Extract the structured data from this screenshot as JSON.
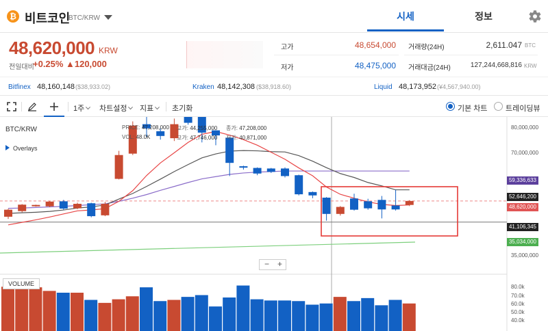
{
  "header": {
    "coin_name": "비트코인",
    "pair": "BTC/KRW",
    "coin_symbol": "₿",
    "tabs": {
      "price": "시세",
      "info": "정보"
    },
    "gear_icon": "gear-icon"
  },
  "ticker": {
    "price": "48,620,000",
    "unit": "KRW",
    "change_label": "전일대비",
    "change_rate": "+0.25%",
    "change_amount": "▲120,000",
    "high_label": "고가",
    "high": "48,654,000",
    "low_label": "저가",
    "low": "48,475,000",
    "volume_label": "거래량(24H)",
    "volume": "2,611.047",
    "volume_unit": "BTC",
    "value_label": "거래대금(24H)",
    "value": "127,244,668,816",
    "value_unit": "KRW",
    "colors": {
      "up": "#c84a31",
      "down": "#1261c4"
    }
  },
  "exchanges": [
    {
      "name": "Bitfinex",
      "price": "48,160,148",
      "usd": "($38,933.02)"
    },
    {
      "name": "Kraken",
      "price": "48,142,308",
      "usd": "($38,918.60)"
    },
    {
      "name": "Liquid",
      "price": "48,173,952",
      "usd": "(¥4,567,940.00)"
    }
  ],
  "toolbar": {
    "period": "1주",
    "chart_settings": "차트설정",
    "indicators": "지표",
    "reset": "초기화",
    "basic_chart": "기본 차트",
    "trading_view": "트레이딩뷰"
  },
  "chart_data": {
    "type": "candlestick",
    "pair_label": "BTC/KRW",
    "overlays_label": "Overlays",
    "volume_label": "VOLUME",
    "ohlc": {
      "price_label": "PRICE:",
      "price": "47,208,000",
      "high_label": "고가:",
      "high": "44,255,000",
      "close_label": "종가:",
      "close": "47,208,000",
      "vol_label": "VOL:",
      "vol": "48.0K",
      "high2_label": "고가:",
      "high2": "47,746,000",
      "low_label": "저가:",
      "low": "40,871,000"
    },
    "y_ticks": [
      "80,000,000",
      "70,000,000",
      "35,000,000"
    ],
    "vol_ticks": [
      "80.0k",
      "70.0k",
      "60.0k",
      "50.0k",
      "40.0k"
    ],
    "tags": [
      {
        "label": "59,336,633",
        "color": "#5b3f9c"
      },
      {
        "label": "52,646,200",
        "color": "#222222"
      },
      {
        "label": "48,620,000",
        "color": "#e05555"
      },
      {
        "label": "41,106,345",
        "color": "#222222"
      },
      {
        "label": "35,034,000",
        "color": "#4caf50"
      }
    ],
    "candles": [
      {
        "o": 43.0,
        "c": 45.5,
        "h": 45.8,
        "l": 42.2,
        "v": 74
      },
      {
        "o": 45.0,
        "c": 47.3,
        "h": 47.5,
        "l": 44.6,
        "v": 74
      },
      {
        "o": 47.0,
        "c": 47.2,
        "h": 47.3,
        "l": 46.6,
        "v": 73
      },
      {
        "o": 46.7,
        "c": 48.4,
        "h": 48.6,
        "l": 46.4,
        "v": 67
      },
      {
        "o": 48.5,
        "c": 45.9,
        "h": 49.0,
        "l": 45.5,
        "v": 64
      },
      {
        "o": 46.0,
        "c": 47.6,
        "h": 48.0,
        "l": 45.7,
        "v": 64
      },
      {
        "o": 47.8,
        "c": 43.2,
        "h": 48.0,
        "l": 42.8,
        "v": 52
      },
      {
        "o": 43.5,
        "c": 47.6,
        "h": 48.3,
        "l": 43.2,
        "v": 47
      },
      {
        "o": 56.5,
        "c": 65.0,
        "h": 66.5,
        "l": 56.3,
        "v": 53
      },
      {
        "o": 65.5,
        "c": 75.5,
        "h": 77.0,
        "l": 65.0,
        "v": 58
      },
      {
        "o": 76.0,
        "c": 74.5,
        "h": 80.0,
        "l": 71.5,
        "v": 73
      },
      {
        "o": 73.5,
        "c": 71.8,
        "h": 74.5,
        "l": 70.5,
        "v": 50
      },
      {
        "o": 71.0,
        "c": 76.0,
        "h": 78.0,
        "l": 70.0,
        "v": 52
      },
      {
        "o": 79.8,
        "c": 76.5,
        "h": 82.5,
        "l": 75.8,
        "v": 57
      },
      {
        "o": 79.0,
        "c": 73.0,
        "h": 80.0,
        "l": 69.5,
        "v": 60
      },
      {
        "o": 73.8,
        "c": 72.0,
        "h": 73.8,
        "l": 68.5,
        "v": 41
      },
      {
        "o": 71.2,
        "c": 62.2,
        "h": 71.2,
        "l": 57.5,
        "v": 56
      },
      {
        "o": 61.0,
        "c": 60.5,
        "h": 61.2,
        "l": 59.8,
        "v": 76
      },
      {
        "o": 60.4,
        "c": 58.4,
        "h": 60.6,
        "l": 57.8,
        "v": 53
      },
      {
        "o": 60.2,
        "c": 59.0,
        "h": 60.4,
        "l": 58.6,
        "v": 51
      },
      {
        "o": 60.2,
        "c": 57.5,
        "h": 60.6,
        "l": 57.0,
        "v": 51
      },
      {
        "o": 57.8,
        "c": 51.0,
        "h": 58.0,
        "l": 50.6,
        "v": 50
      },
      {
        "o": 51.8,
        "c": 50.6,
        "h": 52.0,
        "l": 49.6,
        "v": 44
      },
      {
        "o": 49.8,
        "c": 44.0,
        "h": 50.0,
        "l": 41.6,
        "v": 46
      },
      {
        "o": 44.0,
        "c": 46.5,
        "h": 46.8,
        "l": 43.4,
        "v": 57
      },
      {
        "o": 49.5,
        "c": 45.5,
        "h": 51.2,
        "l": 45.2,
        "v": 50
      },
      {
        "o": 48.5,
        "c": 46.0,
        "h": 49.4,
        "l": 45.5,
        "v": 55
      },
      {
        "o": 49.0,
        "c": 45.6,
        "h": 50.4,
        "l": 42.4,
        "v": 43
      },
      {
        "o": 47.0,
        "c": 45.6,
        "h": 52.6,
        "l": 45.2,
        "v": 52
      },
      {
        "o": 47.2,
        "c": 48.62,
        "h": 48.9,
        "l": 46.8,
        "v": 46
      }
    ],
    "ma_short": [
      40.1,
      41.0,
      41.9,
      42.9,
      44.0,
      45.1,
      45.4,
      45.9,
      48.5,
      52.3,
      57.7,
      62.2,
      65.8,
      69.5,
      72.4,
      73.4,
      72.1,
      70.5,
      68.5,
      66.0,
      63.5,
      60.4,
      57.6,
      53.6,
      51.0,
      49.6,
      48.3,
      47.4,
      47.0,
      47.2
    ],
    "ma_mid": [
      44.2,
      44.4,
      44.6,
      44.9,
      45.4,
      46.1,
      46.5,
      47.2,
      49.3,
      51.3,
      53.8,
      56.4,
      59.1,
      61.6,
      64.0,
      65.4,
      66.4,
      66.6,
      66.5,
      66.2,
      66.1,
      64.8,
      62.8,
      60.5,
      58.4,
      57.0,
      55.2,
      54.0,
      52.6,
      52.6
    ],
    "ma_long": [
      46.0,
      46.1,
      46.3,
      46.5,
      46.7,
      47.0,
      47.3,
      47.6,
      48.5,
      49.6,
      50.9,
      52.4,
      53.8,
      55.2,
      56.5,
      57.3,
      58.1,
      58.6,
      58.9,
      59.1,
      59.3,
      59.3,
      59.3,
      59.3,
      59.3,
      59.3,
      59.3,
      59.3,
      59.3,
      59.3
    ],
    "ma_green_start": 31.0,
    "ma_green_end": 35.0,
    "current_price": 48.62,
    "support_line": 41.1
  }
}
